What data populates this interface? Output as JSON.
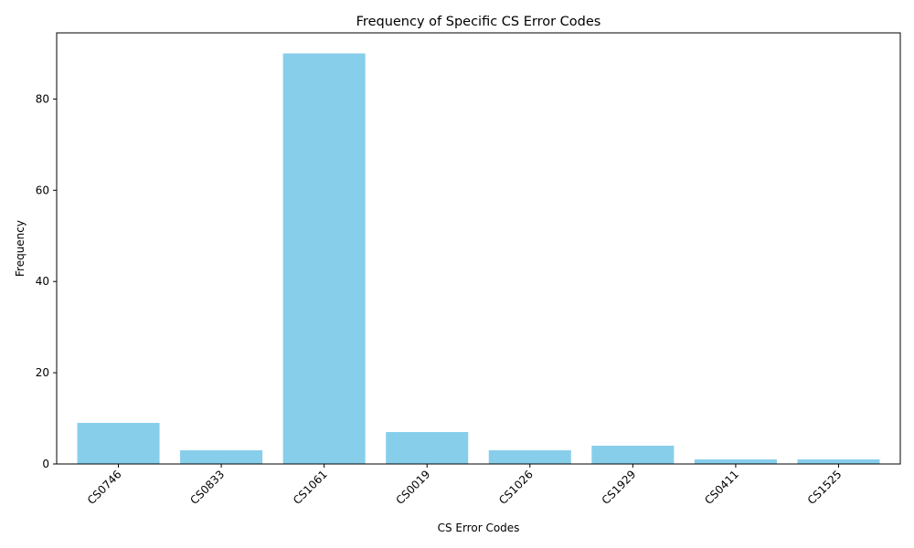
{
  "chart_data": {
    "type": "bar",
    "title": "Frequency of Specific CS Error Codes",
    "xlabel": "CS Error Codes",
    "ylabel": "Frequency",
    "categories": [
      "CS0746",
      "CS0833",
      "CS1061",
      "CS0019",
      "CS1026",
      "CS1929",
      "CS0411",
      "CS1525"
    ],
    "values": [
      9,
      3,
      90,
      7,
      3,
      4,
      1,
      1
    ],
    "ylim": [
      0,
      94.5
    ],
    "yticks": [
      0,
      20,
      40,
      60,
      80
    ],
    "bar_color": "#87ceeb",
    "grid": false,
    "xtick_rotation": 45
  }
}
